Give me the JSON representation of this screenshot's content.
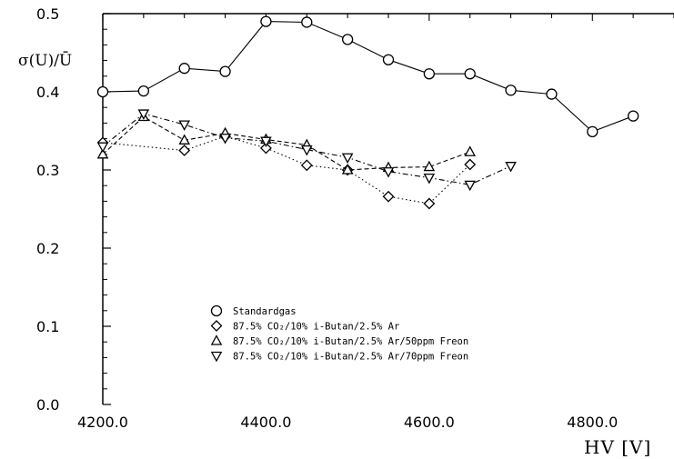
{
  "chart_data": {
    "type": "line",
    "title": "",
    "xlabel": "HV [V]",
    "ylabel": "σ(U)/Ū",
    "xlim": [
      4200,
      4900
    ],
    "ylim": [
      0.0,
      0.5
    ],
    "x_ticks": [
      4200,
      4400,
      4600,
      4800
    ],
    "x_tick_labels": [
      "4200.0",
      "4400.0",
      "4600.0",
      "4800.0"
    ],
    "y_ticks": [
      0.0,
      0.1,
      0.2,
      0.3,
      0.4,
      0.5
    ],
    "y_tick_labels": [
      "0.0",
      "0.1",
      "0.2",
      "0.3",
      "0.4",
      "0.5"
    ],
    "grid": false,
    "legend_position": "bottom-center",
    "series": [
      {
        "name": "Standardgas",
        "marker": "circle",
        "line": "solid",
        "x": [
          4200,
          4250,
          4300,
          4350,
          4400,
          4450,
          4500,
          4550,
          4600,
          4650,
          4700,
          4750,
          4800,
          4850
        ],
        "y": [
          0.4,
          0.401,
          0.43,
          0.426,
          0.49,
          0.489,
          0.467,
          0.441,
          0.423,
          0.423,
          0.402,
          0.397,
          0.349,
          0.369
        ]
      },
      {
        "name": "87.5% CO₂/10% i-Butan/2.5% Ar",
        "marker": "diamond",
        "line": "dotted",
        "x": [
          4200,
          4300,
          4350,
          4400,
          4450,
          4500,
          4550,
          4600,
          4650
        ],
        "y": [
          0.335,
          0.325,
          0.343,
          0.328,
          0.306,
          0.3,
          0.266,
          0.257,
          0.307
        ]
      },
      {
        "name": "87.5% CO₂/10% i-Butan/2.5% Ar/50ppm Freon",
        "marker": "triangle-up",
        "line": "dashed",
        "x": [
          4200,
          4250,
          4300,
          4350,
          4400,
          4450,
          4500,
          4550,
          4600,
          4650
        ],
        "y": [
          0.32,
          0.368,
          0.338,
          0.347,
          0.339,
          0.332,
          0.3,
          0.303,
          0.304,
          0.323
        ]
      },
      {
        "name": "87.5% CO₂/10% i-Butan/2.5% Ar/70ppm Freon",
        "marker": "triangle-down",
        "line": "dash-dot",
        "x": [
          4200,
          4250,
          4300,
          4350,
          4400,
          4450,
          4500,
          4550,
          4600,
          4650,
          4700
        ],
        "y": [
          0.33,
          0.372,
          0.358,
          0.341,
          0.337,
          0.326,
          0.316,
          0.298,
          0.29,
          0.281,
          0.305
        ]
      }
    ]
  }
}
